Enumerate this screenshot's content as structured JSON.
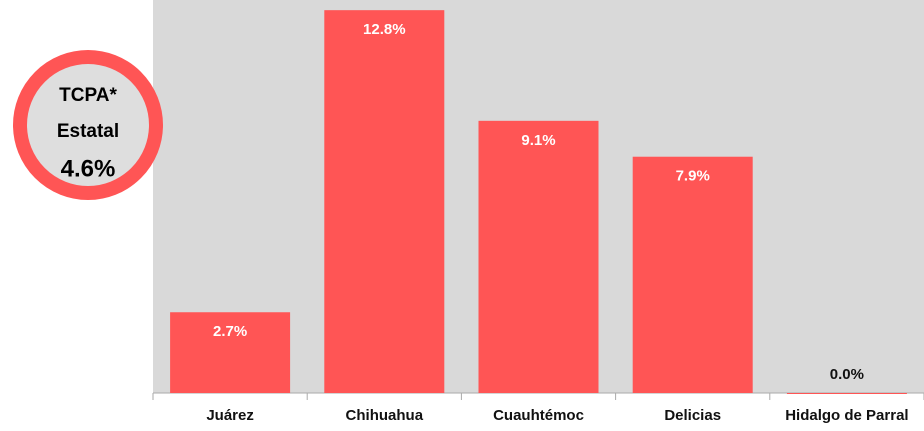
{
  "chart_data": {
    "type": "bar",
    "categories": [
      "Juárez",
      "Chihuahua",
      "Cuauhtémoc",
      "Delicias",
      "Hidalgo de Parral"
    ],
    "values": [
      2.7,
      12.8,
      9.1,
      7.9,
      0.0
    ],
    "value_labels": [
      "2.7%",
      "12.8%",
      "9.1%",
      "7.9%",
      "0.0%"
    ],
    "color": "#ff5555",
    "ylim": [
      0,
      13.14
    ],
    "annotation": [
      "TCPA*",
      "Estatal",
      "4.6%"
    ]
  }
}
